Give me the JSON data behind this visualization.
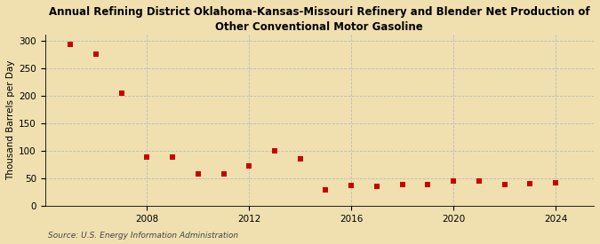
{
  "title": "Annual Refining District Oklahoma-Kansas-Missouri Refinery and Blender Net Production of\nOther Conventional Motor Gasoline",
  "ylabel": "Thousand Barrels per Day",
  "source": "Source: U.S. Energy Information Administration",
  "background_color": "#f0e0b0",
  "plot_background_color": "#f0e0b0",
  "marker_color": "#cc0000",
  "marker_size": 4,
  "years": [
    2005,
    2006,
    2007,
    2008,
    2009,
    2010,
    2011,
    2012,
    2013,
    2014,
    2015,
    2016,
    2017,
    2018,
    2019,
    2020,
    2021,
    2022,
    2023,
    2024
  ],
  "values": [
    293,
    275,
    205,
    88,
    88,
    57,
    57,
    72,
    100,
    85,
    28,
    37,
    35,
    38,
    38,
    45,
    45,
    38,
    40,
    42
  ],
  "xlim": [
    2004.0,
    2025.5
  ],
  "ylim": [
    0,
    310
  ],
  "yticks": [
    0,
    50,
    100,
    150,
    200,
    250,
    300
  ],
  "xticks": [
    2008,
    2012,
    2016,
    2020,
    2024
  ],
  "grid_color": "#bbbbbb",
  "grid_linestyle": "--",
  "title_fontsize": 8.5,
  "label_fontsize": 7.5,
  "tick_fontsize": 7.5,
  "source_fontsize": 6.5
}
